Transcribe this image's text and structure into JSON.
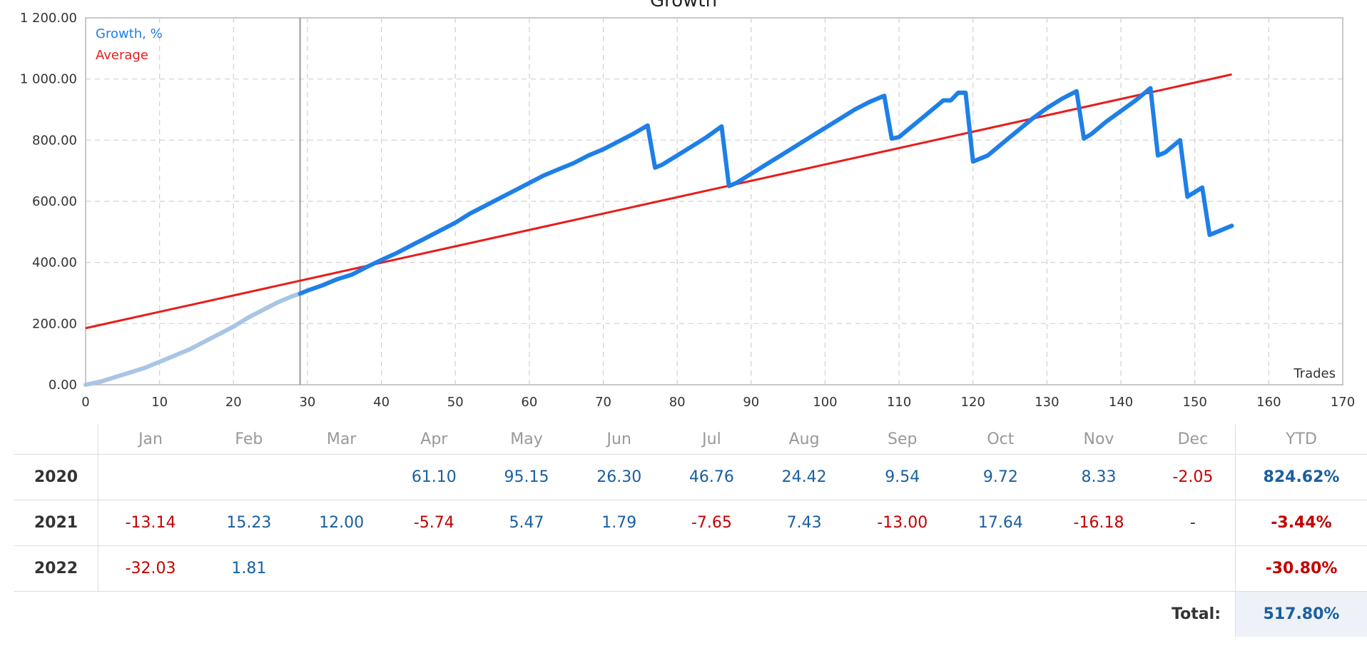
{
  "title": "Growth",
  "chart_data": {
    "type": "line",
    "xlabel": "Trades",
    "xlim": [
      0,
      170
    ],
    "ylim": [
      0,
      1200
    ],
    "x_ticks": [
      "0",
      "10",
      "20",
      "30",
      "40",
      "50",
      "60",
      "70",
      "80",
      "90",
      "100",
      "110",
      "120",
      "130",
      "140",
      "150",
      "160",
      "170"
    ],
    "y_ticks": [
      "0.00",
      "200.00",
      "400.00",
      "600.00",
      "800.00",
      "1 000.00",
      "1 200.00"
    ],
    "grid": true,
    "legend_position": "top-left",
    "legend": [
      "Growth, %",
      "Average"
    ],
    "marker_x": 29,
    "series": [
      {
        "name": "Growth, %",
        "color": "#1e7fe8",
        "history_color": "#a9c5e4",
        "x": [
          0,
          2,
          4,
          6,
          8,
          10,
          12,
          14,
          16,
          18,
          20,
          22,
          24,
          26,
          28,
          29,
          30,
          32,
          34,
          36,
          38,
          40,
          42,
          44,
          46,
          48,
          50,
          52,
          54,
          56,
          58,
          60,
          62,
          64,
          66,
          68,
          70,
          72,
          74,
          76,
          77,
          78,
          80,
          82,
          84,
          86,
          87,
          88,
          90,
          92,
          94,
          96,
          98,
          100,
          102,
          104,
          106,
          108,
          109,
          110,
          112,
          114,
          116,
          117,
          118,
          119,
          120,
          122,
          124,
          126,
          128,
          130,
          132,
          134,
          135,
          136,
          138,
          140,
          142,
          144,
          145,
          146,
          148,
          149,
          150,
          151,
          152,
          153,
          155
        ],
        "y": [
          0,
          10,
          25,
          40,
          55,
          75,
          95,
          115,
          140,
          165,
          190,
          220,
          245,
          270,
          290,
          298,
          308,
          325,
          345,
          360,
          385,
          408,
          430,
          455,
          480,
          505,
          530,
          560,
          585,
          610,
          635,
          660,
          685,
          705,
          725,
          750,
          770,
          795,
          820,
          848,
          710,
          720,
          750,
          780,
          810,
          845,
          650,
          660,
          690,
          720,
          750,
          780,
          810,
          840,
          870,
          900,
          925,
          945,
          805,
          810,
          850,
          890,
          930,
          930,
          955,
          955,
          730,
          750,
          790,
          830,
          870,
          905,
          935,
          960,
          805,
          820,
          860,
          895,
          930,
          970,
          750,
          760,
          800,
          615,
          630,
          645,
          490,
          500,
          520
        ]
      },
      {
        "name": "Average",
        "color": "#e81c1c",
        "x": [
          0,
          155
        ],
        "y": [
          185,
          1015
        ]
      }
    ]
  },
  "table": {
    "headers": [
      "Jan",
      "Feb",
      "Mar",
      "Apr",
      "May",
      "Jun",
      "Jul",
      "Aug",
      "Sep",
      "Oct",
      "Nov",
      "Dec"
    ],
    "ytd_header": "YTD",
    "rows": [
      {
        "year": "2020",
        "months": [
          "",
          "",
          "",
          "61.10",
          "95.15",
          "26.30",
          "46.76",
          "24.42",
          "9.54",
          "9.72",
          "8.33",
          "-2.05"
        ],
        "ytd": "824.62%"
      },
      {
        "year": "2021",
        "months": [
          "-13.14",
          "15.23",
          "12.00",
          "-5.74",
          "5.47",
          "1.79",
          "-7.65",
          "7.43",
          "-13.00",
          "17.64",
          "-16.18",
          "-"
        ],
        "ytd": "-3.44%"
      },
      {
        "year": "2022",
        "months": [
          "-32.03",
          "1.81",
          "",
          "",
          "",
          "",
          "",
          "",
          "",
          "",
          "",
          ""
        ],
        "ytd": "-30.80%"
      }
    ],
    "total_label": "Total:",
    "total_value": "517.80%"
  }
}
